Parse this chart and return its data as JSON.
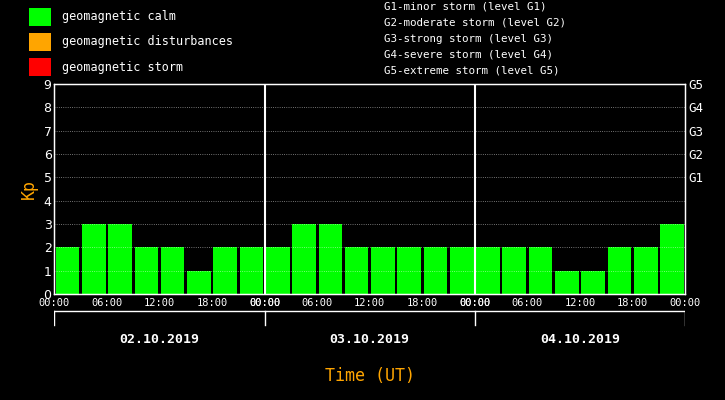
{
  "background_color": "#000000",
  "bar_color": "#00ff00",
  "text_color": "#ffffff",
  "orange_color": "#ffa500",
  "days": [
    "02.10.2019",
    "03.10.2019",
    "04.10.2019"
  ],
  "kp_values_day1": [
    2,
    3,
    3,
    2,
    2,
    1,
    2,
    2
  ],
  "kp_values_day2": [
    2,
    3,
    3,
    2,
    2,
    2,
    2,
    2
  ],
  "kp_values_day3": [
    2,
    2,
    2,
    1,
    1,
    2,
    2,
    3
  ],
  "ylim": [
    0,
    9
  ],
  "yticks": [
    0,
    1,
    2,
    3,
    4,
    5,
    6,
    7,
    8,
    9
  ],
  "right_labels": [
    [
      5,
      "G1"
    ],
    [
      6,
      "G2"
    ],
    [
      7,
      "G3"
    ],
    [
      8,
      "G4"
    ],
    [
      9,
      "G5"
    ]
  ],
  "legend_items": [
    {
      "color": "#00ff00",
      "label": "geomagnetic calm"
    },
    {
      "color": "#ffa500",
      "label": "geomagnetic disturbances"
    },
    {
      "color": "#ff0000",
      "label": "geomagnetic storm"
    }
  ],
  "storm_levels": [
    "G1-minor storm (level G1)",
    "G2-moderate storm (level G2)",
    "G3-strong storm (level G3)",
    "G4-severe storm (level G4)",
    "G5-extreme storm (level G5)"
  ],
  "xlabel": "Time (UT)",
  "ylabel": "Kp",
  "time_ticks": [
    "00:00",
    "06:00",
    "12:00",
    "18:00",
    "00:00"
  ],
  "num_bars_per_day": 8
}
